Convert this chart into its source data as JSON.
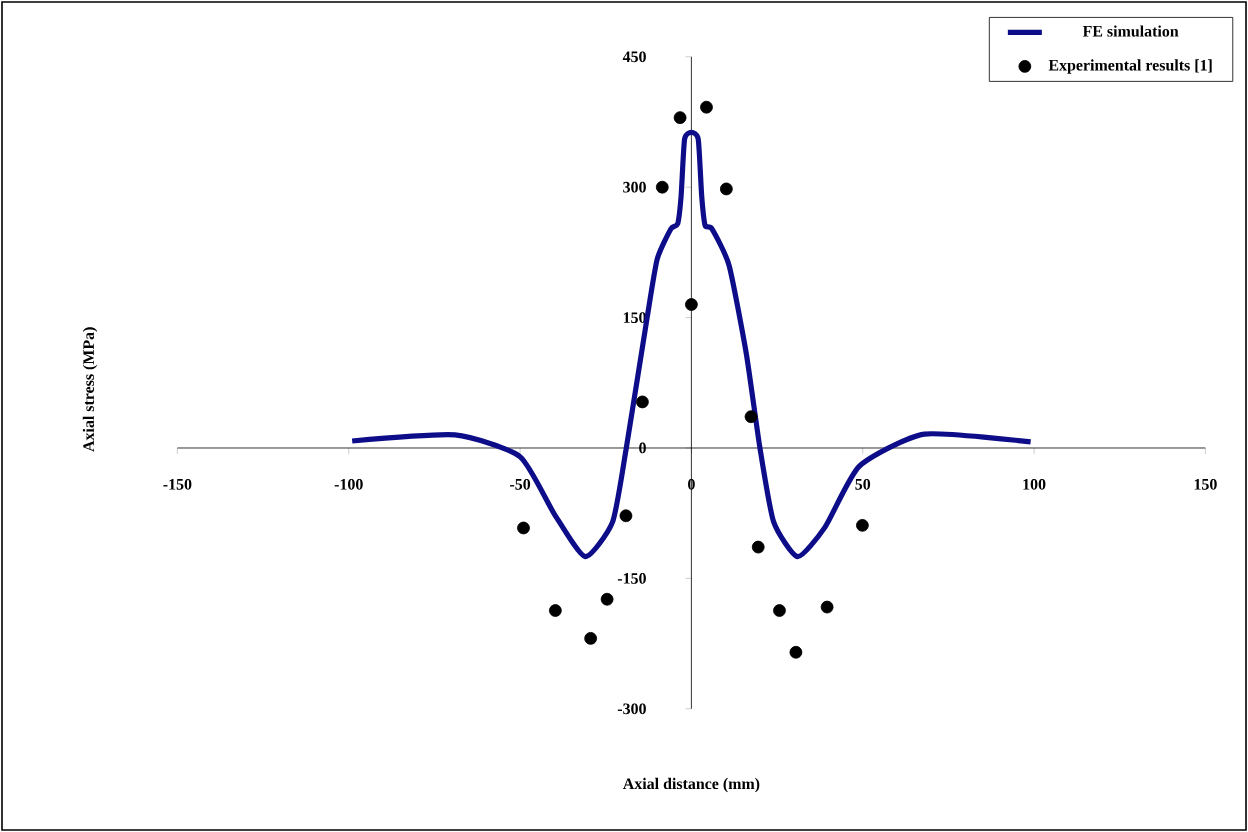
{
  "chart_data": {
    "type": "line",
    "xlabel": "Axial distance (mm)",
    "ylabel": "Axial stress (MPa)",
    "xlim": [
      -150,
      150
    ],
    "ylim": [
      -300,
      450
    ],
    "xticks": [
      -150,
      -100,
      -50,
      0,
      50,
      100,
      150
    ],
    "yticks": [
      -300,
      -150,
      0,
      150,
      300,
      450
    ],
    "legend": "top right",
    "series": [
      {
        "name": "FE simulation",
        "color": "#0d0d8a",
        "x": [
          -99,
          -69,
          -50,
          -40,
          -31,
          -23,
          -19,
          -13,
          -10,
          -6,
          -4,
          -3,
          -2,
          0,
          2,
          3,
          4,
          6,
          11,
          16,
          20,
          24,
          31,
          39,
          49,
          68,
          99
        ],
        "values": [
          8,
          15,
          -10,
          -76,
          -125,
          -85,
          0,
          148,
          217,
          252,
          258,
          290,
          355,
          363,
          355,
          290,
          256,
          252,
          210,
          109,
          0,
          -85,
          -125,
          -91,
          -21,
          16,
          7
        ]
      },
      {
        "name": "Experimental results [1]",
        "type": "scatter",
        "color": "#000000",
        "x": [
          -49,
          -39.7,
          -29.4,
          -24.6,
          -19.1,
          -14.3,
          -8.5,
          -3.3,
          0,
          4.4,
          10.2,
          17.4,
          19.5,
          25.7,
          30.5,
          39.6,
          49.9
        ],
        "values": [
          -92,
          -187,
          -219,
          -174,
          -78,
          53,
          300,
          380,
          165,
          392,
          298,
          36,
          -114,
          -187,
          -235,
          -183,
          -89
        ]
      }
    ]
  }
}
